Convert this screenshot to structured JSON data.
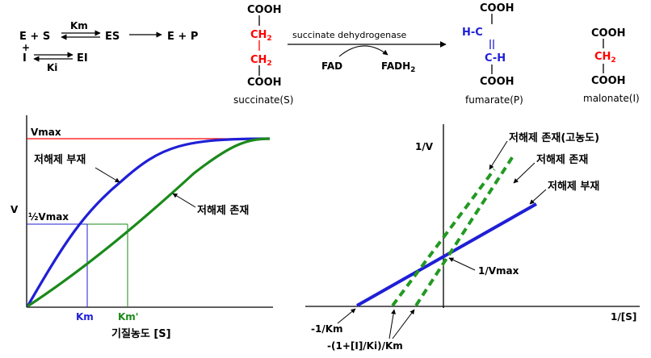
{
  "colors": {
    "black": "#000000",
    "red": "#ff0000",
    "blue": "#1f1fd6",
    "green": "#1a8a1a",
    "dashed_green": "#229922"
  },
  "scheme": {
    "row1_left": "E + S",
    "km": "Km",
    "es": "ES",
    "product": "E + P",
    "plus": "+",
    "inhibitor": "I",
    "ki": "Ki",
    "ei": "EI"
  },
  "succinate": {
    "top": "COOH",
    "ch2a": "CH",
    "ch2b": "CH",
    "sub2": "2",
    "bottom": "COOH",
    "label": "succinate(S)"
  },
  "reaction": {
    "enzyme": "succinate dehydrogenase",
    "fad": "FAD",
    "fadh2": "FADH",
    "fadh2_sub": "2"
  },
  "fumarate": {
    "top": "COOH",
    "hc": "H-C",
    "double": "=",
    "ch": "C-H",
    "bottom": "COOH",
    "label": "fumarate(P)"
  },
  "malonate": {
    "top": "COOH",
    "ch2": "CH",
    "sub2": "2",
    "bottom": "COOH",
    "label": "malonate(I)"
  },
  "mm_plot": {
    "vmax": "Vmax",
    "half_vmax": "½Vmax",
    "ylabel": "V",
    "xlabel": "기질농도 [S]",
    "km": "Km",
    "km_prime": "Km'",
    "absent_label": "저해제 부재",
    "present_label": "저해제 존재"
  },
  "lb_plot": {
    "ylabel": "1/V",
    "xlabel": "1/[S]",
    "high_label": "저해제 존재(고농도)",
    "present_label": "저해제 존재",
    "absent_label": "저해제 부재",
    "intercept_label": "1/Vmax",
    "neg_km": "-1/Km",
    "neg_km_app": "-(1+[I]/Ki)/Km"
  }
}
